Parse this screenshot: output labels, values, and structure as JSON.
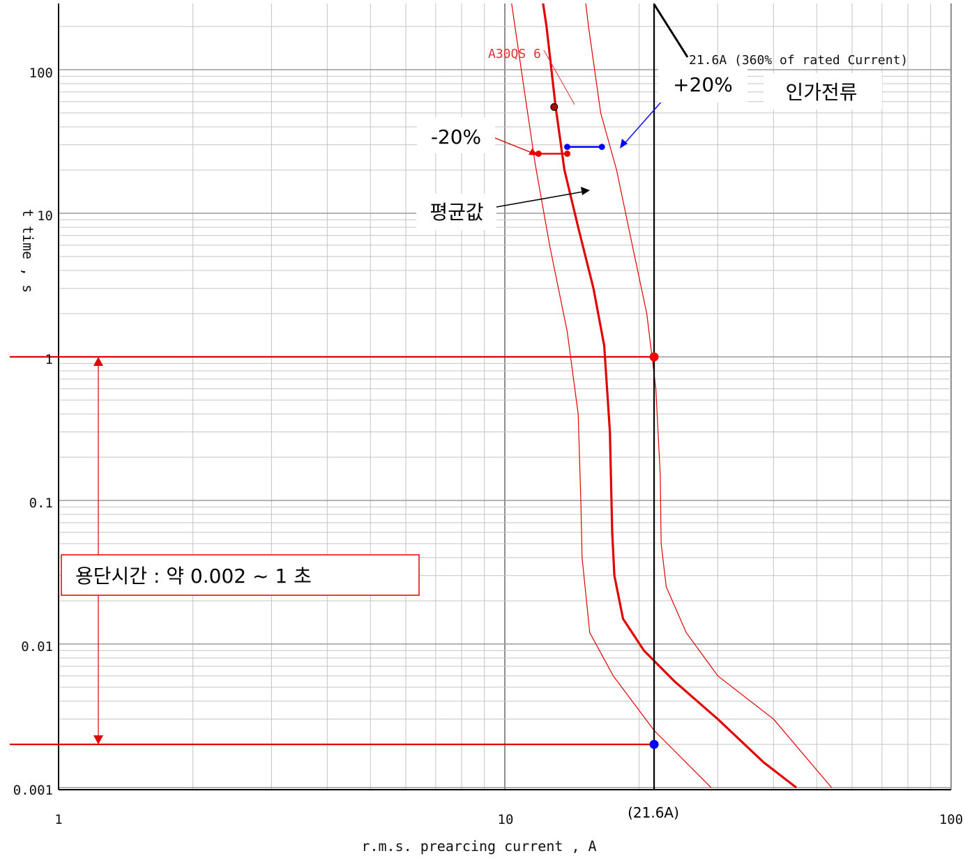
{
  "chart_data": {
    "type": "line",
    "xscale": "log",
    "yscale": "log",
    "xlim": [
      1,
      100
    ],
    "ylim": [
      0.001,
      200
    ],
    "xlabel": "r.m.s. prearcing current , A",
    "ylabel": "t time , s",
    "x_ticks": [
      "1",
      "10",
      "100"
    ],
    "y_ticks": [
      "0.001",
      "0.01",
      "0.1",
      "1",
      "10",
      "100"
    ],
    "grid": true,
    "series": [
      {
        "name": "A30QS 6",
        "color": "#e00000",
        "style": "thick",
        "points": [
          [
            11.6,
            800
          ],
          [
            12.4,
            200
          ],
          [
            13.0,
            55
          ],
          [
            13.6,
            20
          ],
          [
            14.6,
            8
          ],
          [
            15.8,
            3
          ],
          [
            16.7,
            1.2
          ],
          [
            17.2,
            0.3
          ],
          [
            17.4,
            0.06
          ],
          [
            17.6,
            0.03
          ],
          [
            18.4,
            0.015
          ],
          [
            20.5,
            0.009
          ],
          [
            24.0,
            0.0055
          ],
          [
            30.0,
            0.003
          ],
          [
            38.0,
            0.0015
          ],
          [
            45.0,
            0.001
          ]
        ]
      },
      {
        "name": "-20%",
        "color": "#e00000",
        "style": "thin",
        "points": [
          [
            10.2,
            400
          ],
          [
            11.0,
            80
          ],
          [
            11.7,
            22
          ],
          [
            12.6,
            6
          ],
          [
            13.8,
            1.5
          ],
          [
            14.6,
            0.4
          ],
          [
            14.8,
            0.1
          ],
          [
            14.9,
            0.04
          ],
          [
            15.5,
            0.012
          ],
          [
            17.5,
            0.006
          ],
          [
            21.6,
            0.0025
          ],
          [
            29.0,
            0.001
          ]
        ]
      },
      {
        "name": "+20%",
        "color": "#e00000",
        "style": "thin",
        "points": [
          [
            14.6,
            800
          ],
          [
            15.4,
            200
          ],
          [
            16.4,
            50
          ],
          [
            17.8,
            20
          ],
          [
            19.3,
            6
          ],
          [
            20.8,
            2
          ],
          [
            21.8,
            0.6
          ],
          [
            22.3,
            0.15
          ],
          [
            22.4,
            0.05
          ],
          [
            23.0,
            0.025
          ],
          [
            25.5,
            0.012
          ],
          [
            30.0,
            0.006
          ],
          [
            40.0,
            0.003
          ],
          [
            54.0,
            0.001
          ]
        ]
      }
    ],
    "reference_line": {
      "x": 21.6,
      "label": "21.6A (360% of rated Current)"
    },
    "highlight_range": {
      "y_min": 0.002,
      "y_max": 1
    },
    "markers": [
      {
        "x": 21.6,
        "y": 1,
        "color": "#ff0000"
      },
      {
        "x": 21.6,
        "y": 0.002,
        "color": "#0000ff"
      },
      {
        "x": 12.9,
        "y": 55,
        "color": "#b00000"
      }
    ],
    "bands": [
      {
        "y": 26,
        "x_from": 11.9,
        "x_to": 13.8,
        "color": "#e00000"
      },
      {
        "y": 29,
        "x_from": 13.8,
        "x_to": 16.5,
        "color": "#0000ff"
      }
    ],
    "annotations": {
      "curve_label": "A30QS 6",
      "ref_label": "21.6A (360% of rated Current)",
      "plus20": "+20%",
      "minus20": "-20%",
      "applied": "인가전류",
      "average": "평균값",
      "x_callout": "(21.6A)",
      "range_box": "용단시간 : 약 0.002 ~ 1 초"
    }
  }
}
